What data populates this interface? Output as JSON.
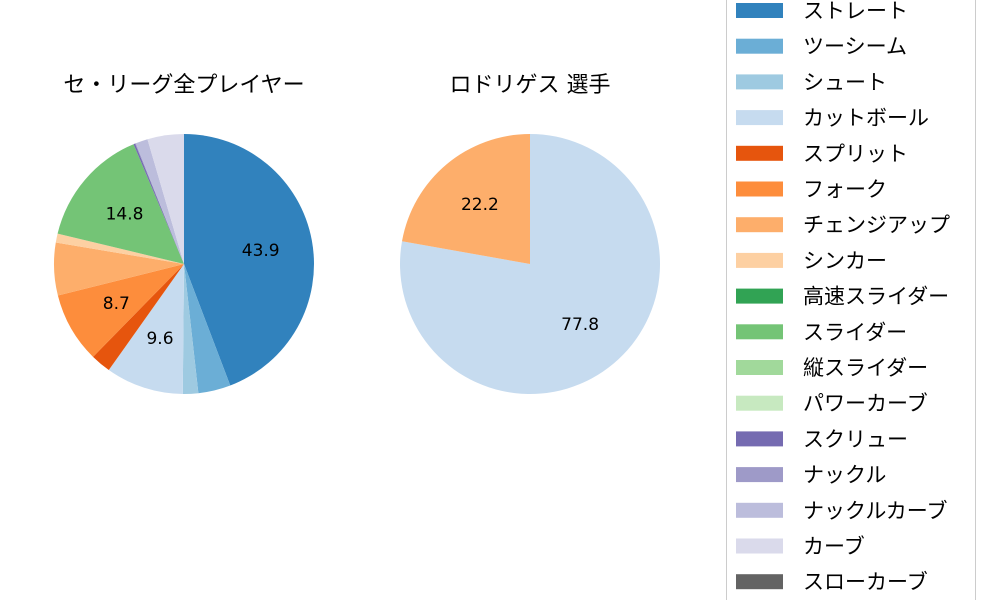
{
  "chart_data": [
    {
      "type": "pie",
      "title": "セ・リーグ全プレイヤー",
      "slices": [
        {
          "label": "ストレート",
          "value": 43.9,
          "color": "#3182bd",
          "show_label": true
        },
        {
          "label": "ツーシーム",
          "value": 4.0,
          "color": "#6baed6",
          "show_label": false
        },
        {
          "label": "シュート",
          "value": 1.9,
          "color": "#9ecae1",
          "show_label": false
        },
        {
          "label": "カットボール",
          "value": 9.6,
          "color": "#c6dbef",
          "show_label": true
        },
        {
          "label": "スプリット",
          "value": 2.5,
          "color": "#e6550d",
          "show_label": false
        },
        {
          "label": "フォーク",
          "value": 8.7,
          "color": "#fd8d3c",
          "show_label": true
        },
        {
          "label": "チェンジアップ",
          "value": 6.5,
          "color": "#fdae6b",
          "show_label": false
        },
        {
          "label": "シンカー",
          "value": 1.1,
          "color": "#fdd0a2",
          "show_label": false
        },
        {
          "label": "高速スライダー",
          "value": 0.0,
          "color": "#31a354",
          "show_label": false
        },
        {
          "label": "スライダー",
          "value": 14.8,
          "color": "#74c476",
          "show_label": true
        },
        {
          "label": "縦スライダー",
          "value": 0.0,
          "color": "#a1d99b",
          "show_label": false
        },
        {
          "label": "パワーカーブ",
          "value": 0.0,
          "color": "#c7e9c0",
          "show_label": false
        },
        {
          "label": "スクリュー",
          "value": 0.2,
          "color": "#756bb1",
          "show_label": false
        },
        {
          "label": "ナックル",
          "value": 0.1,
          "color": "#9e9ac8",
          "show_label": false
        },
        {
          "label": "ナックルカーブ",
          "value": 1.5,
          "color": "#bcbddc",
          "show_label": false
        },
        {
          "label": "カーブ",
          "value": 4.5,
          "color": "#dadaeb",
          "show_label": false
        },
        {
          "label": "スローカーブ",
          "value": 0.0,
          "color": "#636363",
          "show_label": false
        }
      ]
    },
    {
      "type": "pie",
      "title": "ロドリゲス  選手",
      "slices": [
        {
          "label": "カットボール",
          "value": 77.8,
          "color": "#c6dbef",
          "show_label": true
        },
        {
          "label": "チェンジアップ",
          "value": 22.2,
          "color": "#fdae6b",
          "show_label": true
        }
      ]
    }
  ],
  "legend": {
    "placement": "right",
    "entries": [
      {
        "label": "ストレート",
        "color": "#3182bd"
      },
      {
        "label": "ツーシーム",
        "color": "#6baed6"
      },
      {
        "label": "シュート",
        "color": "#9ecae1"
      },
      {
        "label": "カットボール",
        "color": "#c6dbef"
      },
      {
        "label": "スプリット",
        "color": "#e6550d"
      },
      {
        "label": "フォーク",
        "color": "#fd8d3c"
      },
      {
        "label": "チェンジアップ",
        "color": "#fdae6b"
      },
      {
        "label": "シンカー",
        "color": "#fdd0a2"
      },
      {
        "label": "高速スライダー",
        "color": "#31a354"
      },
      {
        "label": "スライダー",
        "color": "#74c476"
      },
      {
        "label": "縦スライダー",
        "color": "#a1d99b"
      },
      {
        "label": "パワーカーブ",
        "color": "#c7e9c0"
      },
      {
        "label": "スクリュー",
        "color": "#756bb1"
      },
      {
        "label": "ナックル",
        "color": "#9e9ac8"
      },
      {
        "label": "ナックルカーブ",
        "color": "#bcbddc"
      },
      {
        "label": "カーブ",
        "color": "#dadaeb"
      },
      {
        "label": "スローカーブ",
        "color": "#636363"
      }
    ]
  }
}
